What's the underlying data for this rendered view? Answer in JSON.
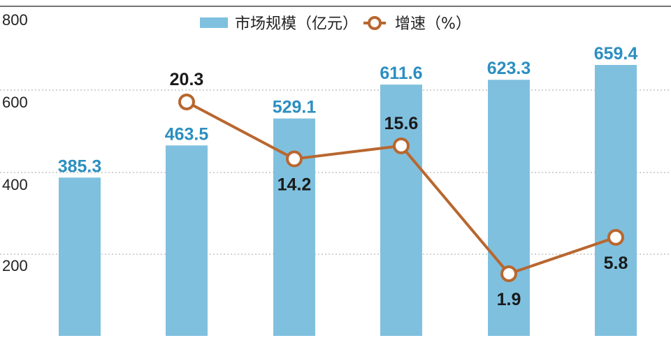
{
  "chart_data": {
    "type": "bar",
    "categories": [
      "",
      "",
      "",
      "",
      "",
      ""
    ],
    "ylim": [
      0,
      800
    ],
    "yticks": [
      "200",
      "400",
      "600",
      "800"
    ],
    "ytick_values": [
      200,
      400,
      600,
      800
    ],
    "grid": "dotted horizontal",
    "legend_placement": "top-center",
    "series": [
      {
        "name": "市场规模（亿元）",
        "kind": "bar",
        "color": "#7fc0df",
        "label_color": "#2b8fc0",
        "values": [
          385.3,
          463.5,
          529.1,
          611.6,
          623.3,
          659.4
        ],
        "labels": [
          "385.3",
          "463.5",
          "529.1",
          "611.6",
          "623.3",
          "659.4"
        ]
      },
      {
        "name": "增速（%）",
        "kind": "line",
        "color": "#b8672f",
        "values": [
          null,
          20.3,
          14.2,
          15.6,
          1.9,
          5.8
        ],
        "labels": [
          "",
          "20.3",
          "14.2",
          "15.6",
          "1.9",
          "5.8"
        ],
        "label_positions": [
          "",
          "above",
          "below",
          "above",
          "below",
          "below"
        ]
      }
    ]
  }
}
